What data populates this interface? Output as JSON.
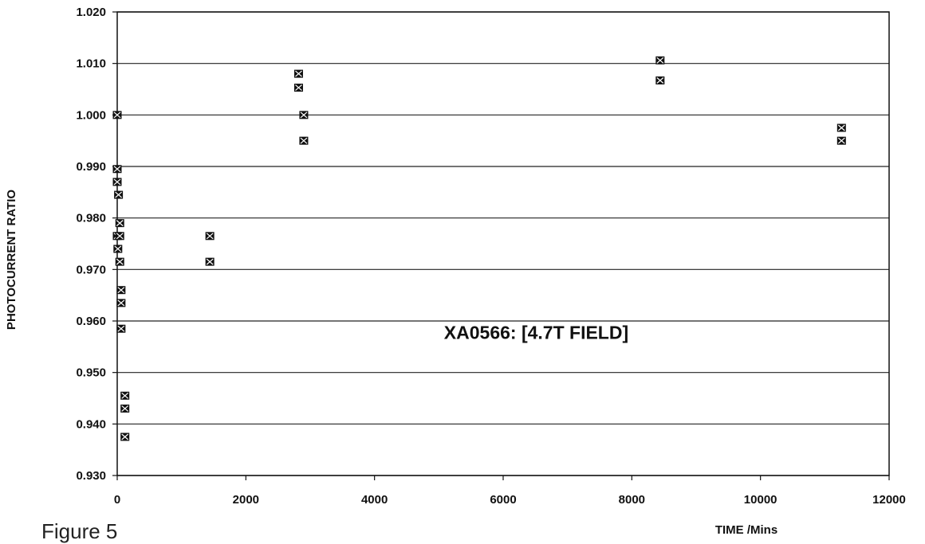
{
  "chart_data": {
    "type": "scatter",
    "title": "",
    "xlabel": "TIME /Mins",
    "ylabel": "PHOTOCURRENT RATIO",
    "xlim": [
      0,
      12000
    ],
    "ylim": [
      0.93,
      1.02
    ],
    "x_ticks": [
      0,
      2000,
      4000,
      6000,
      8000,
      10000,
      12000
    ],
    "x_tick_labels": [
      "0",
      "2000",
      "4000",
      "6000",
      "8000",
      "10000",
      "12000"
    ],
    "y_ticks": [
      0.93,
      0.94,
      0.95,
      0.96,
      0.97,
      0.98,
      0.99,
      1.0,
      1.01,
      1.02
    ],
    "y_tick_labels": [
      "0.930",
      "0.940",
      "0.950",
      "0.960",
      "0.970",
      "0.980",
      "0.990",
      "1.000",
      "1.010",
      "1.020"
    ],
    "grid": "horizontal",
    "annotation": "XA0566: [4.7T FIELD]",
    "marker": "filled-square-x",
    "marker_color": "#111111",
    "series": [
      {
        "points": [
          {
            "x": 0,
            "y": 1.0
          },
          {
            "x": 0,
            "y": 0.9895
          },
          {
            "x": 0,
            "y": 0.987
          },
          {
            "x": 20,
            "y": 0.9845
          },
          {
            "x": 40,
            "y": 0.979
          },
          {
            "x": 0,
            "y": 0.9765
          },
          {
            "x": 40,
            "y": 0.9765
          },
          {
            "x": 10,
            "y": 0.974
          },
          {
            "x": 40,
            "y": 0.9715
          },
          {
            "x": 60,
            "y": 0.966
          },
          {
            "x": 60,
            "y": 0.9635
          },
          {
            "x": 60,
            "y": 0.9585
          },
          {
            "x": 120,
            "y": 0.9455
          },
          {
            "x": 120,
            "y": 0.943
          },
          {
            "x": 120,
            "y": 0.9375
          },
          {
            "x": 1440,
            "y": 0.9765
          },
          {
            "x": 1440,
            "y": 0.9715
          },
          {
            "x": 2820,
            "y": 1.008
          },
          {
            "x": 2820,
            "y": 1.0053
          },
          {
            "x": 2900,
            "y": 1.0
          },
          {
            "x": 2900,
            "y": 0.995
          },
          {
            "x": 8440,
            "y": 1.0106
          },
          {
            "x": 8440,
            "y": 1.0067
          },
          {
            "x": 11260,
            "y": 0.9975
          },
          {
            "x": 11260,
            "y": 0.995
          }
        ]
      }
    ]
  },
  "figure_label": "Figure 5"
}
